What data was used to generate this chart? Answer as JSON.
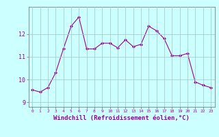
{
  "x": [
    0,
    1,
    2,
    3,
    4,
    5,
    6,
    7,
    8,
    9,
    10,
    11,
    12,
    13,
    14,
    15,
    16,
    17,
    18,
    19,
    20,
    21,
    22,
    23
  ],
  "y": [
    9.55,
    9.45,
    9.65,
    10.3,
    11.35,
    12.35,
    12.75,
    11.35,
    11.35,
    11.6,
    11.6,
    11.4,
    11.75,
    11.45,
    11.55,
    12.35,
    12.15,
    11.8,
    11.05,
    11.05,
    11.15,
    9.9,
    9.75,
    9.65
  ],
  "line_color": "#990099",
  "marker": "D",
  "marker_size": 2.0,
  "bg_color": "#ccffff",
  "grid_color": "#aacccc",
  "xlabel": "Windchill (Refroidissement éolien,°C)",
  "xlabel_fontsize": 6.5,
  "tick_label_color": "#990099",
  "axis_label_color": "#990099",
  "ylim": [
    8.8,
    13.2
  ],
  "yticks": [
    9,
    10,
    11,
    12
  ],
  "ytick_labels": [
    "9",
    "10",
    "11",
    "12"
  ],
  "xlim": [
    -0.5,
    23.5
  ],
  "xticks": [
    0,
    1,
    2,
    3,
    4,
    5,
    6,
    7,
    8,
    9,
    10,
    11,
    12,
    13,
    14,
    15,
    16,
    17,
    18,
    19,
    20,
    21,
    22,
    23
  ]
}
